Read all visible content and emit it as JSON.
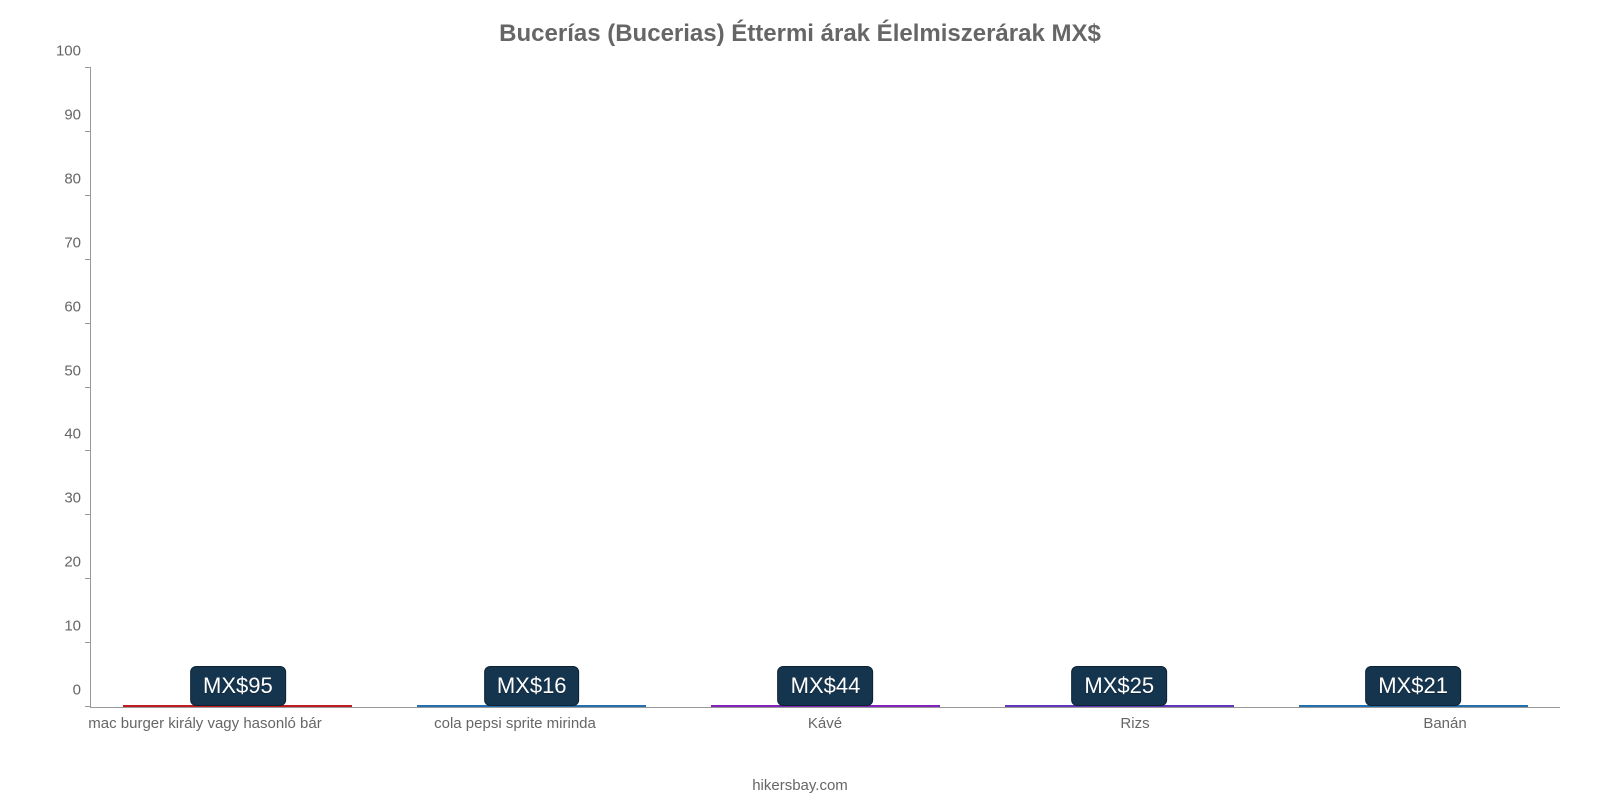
{
  "chart": {
    "type": "bar",
    "title": "Bucerías (Bucerias) Éttermi árak Élelmiszerárak MX$",
    "title_fontsize": 24,
    "title_color": "#666666",
    "credit": "hikersbay.com",
    "credit_fontsize": 15,
    "credit_color": "#666666",
    "background_color": "#ffffff",
    "axis_color": "#999999",
    "ylim": [
      0,
      100
    ],
    "ytick_step": 10,
    "ytick_labels": [
      "0",
      "10",
      "20",
      "30",
      "40",
      "50",
      "60",
      "70",
      "80",
      "90",
      "100"
    ],
    "ytick_fontsize": 15,
    "ytick_color": "#666666",
    "xlabel_fontsize": 15,
    "xlabel_color": "#666666",
    "bar_width_pct": 78,
    "badge_bg": "#15354f",
    "badge_border": "#0c2233",
    "badge_fontsize": 22,
    "categories": [
      "mac burger király vagy hasonló bár",
      "cola pepsi sprite mirinda",
      "Kávé",
      "Rizs",
      "Banán"
    ],
    "values": [
      95,
      16,
      44,
      25,
      21
    ],
    "value_labels": [
      "MX$95",
      "MX$16",
      "MX$44",
      "MX$25",
      "MX$21"
    ],
    "bar_fill_colors": [
      "#e8272d",
      "#2f8bd8",
      "#a32ee6",
      "#7a45e6",
      "#2f8bd8"
    ],
    "bar_border_colors": [
      "#c11b20",
      "#246fae",
      "#8223bb",
      "#6236bb",
      "#246fae"
    ]
  }
}
